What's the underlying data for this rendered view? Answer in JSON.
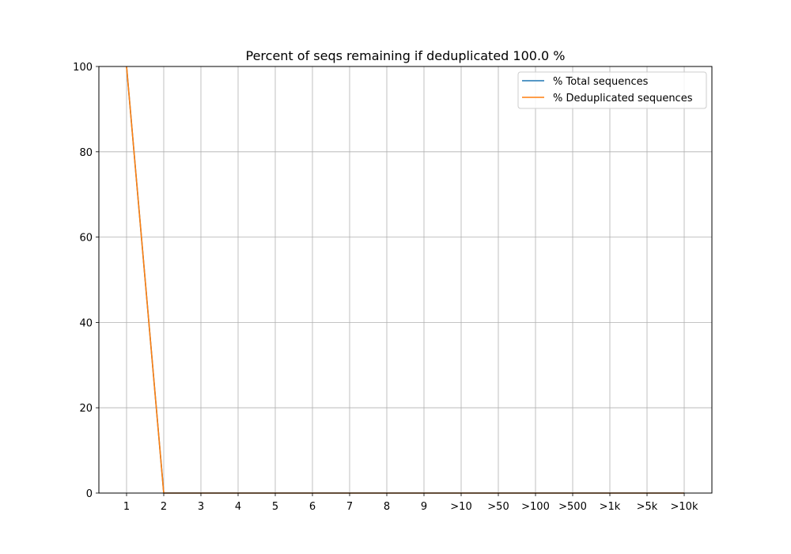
{
  "chart_data": {
    "type": "line",
    "title": "Percent of seqs remaining if deduplicated 100.0 %",
    "xlabel": "",
    "ylabel": "",
    "categories": [
      "1",
      "2",
      "3",
      "4",
      "5",
      "6",
      "7",
      "8",
      "9",
      ">10",
      ">50",
      ">100",
      ">500",
      ">1k",
      ">5k",
      ">10k"
    ],
    "ylim": [
      0,
      100
    ],
    "yticks": [
      0,
      20,
      40,
      60,
      80,
      100
    ],
    "grid": true,
    "legend_position": "top-right",
    "series": [
      {
        "name": "% Total sequences",
        "color": "#1f77b4",
        "values": [
          100,
          0,
          0,
          0,
          0,
          0,
          0,
          0,
          0,
          0,
          0,
          0,
          0,
          0,
          0,
          0
        ]
      },
      {
        "name": "% Deduplicated sequences",
        "color": "#ff7f0e",
        "values": [
          100,
          0,
          0,
          0,
          0,
          0,
          0,
          0,
          0,
          0,
          0,
          0,
          0,
          0,
          0,
          0
        ]
      }
    ]
  }
}
